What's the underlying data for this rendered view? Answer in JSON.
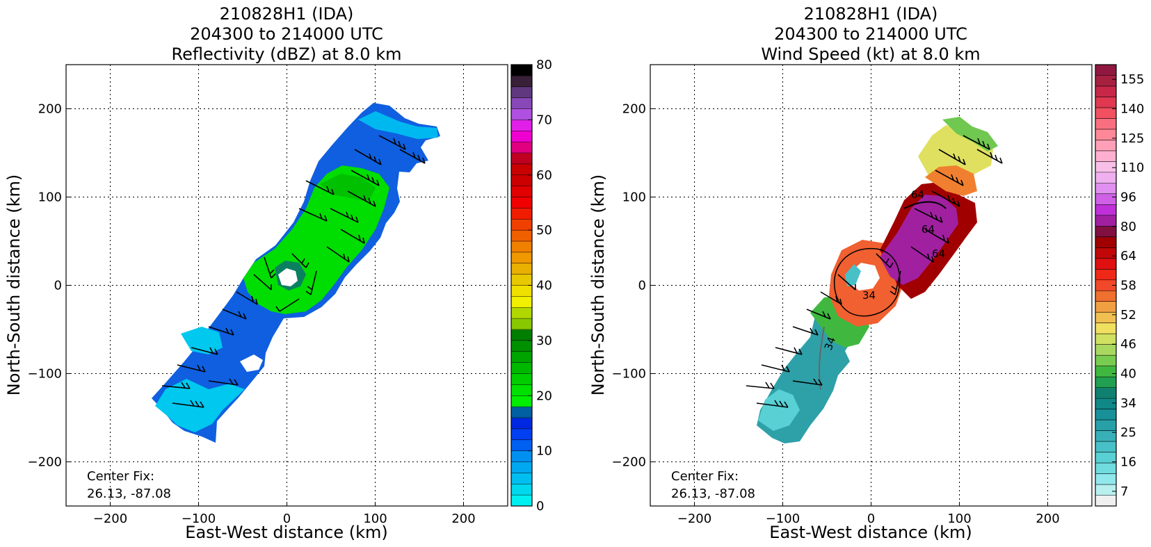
{
  "chart_data": [
    {
      "type": "heatmap",
      "title": [
        "210828H1 (IDA)",
        "204300 to 214000 UTC",
        "Reflectivity (dBZ) at 8.0 km"
      ],
      "xlabel": "East-West distance (km)",
      "ylabel": "North-South distance (km)",
      "xlim": [
        -250,
        250
      ],
      "ylim": [
        -250,
        250
      ],
      "xticks": [
        "−200",
        "−100",
        "0",
        "100",
        "200"
      ],
      "yticks": [
        "200",
        "100",
        "0",
        "−100",
        "−200"
      ],
      "grid": true,
      "annotation": [
        "Center Fix:",
        "26.13, -87.08"
      ],
      "colorbar": {
        "ticks": [
          "0",
          "10",
          "20",
          "30",
          "40",
          "50",
          "60",
          "70",
          "80"
        ],
        "range": [
          0,
          80
        ],
        "colors": [
          "#00f0f0",
          "#00d8ee",
          "#00bff0",
          "#00a8f0",
          "#0090f0",
          "#0060f0",
          "#0040f0",
          "#0028e0",
          "#0060a0",
          "#00ee00",
          "#00e000",
          "#00cc00",
          "#00b800",
          "#00a400",
          "#009000",
          "#007e00",
          "#88c800",
          "#b0d800",
          "#f0f000",
          "#f0e000",
          "#e8c800",
          "#e8b000",
          "#f09800",
          "#f08000",
          "#f06000",
          "#f04000",
          "#f01c00",
          "#f00000",
          "#e00000",
          "#cc0000",
          "#c80000",
          "#c00020",
          "#e00080",
          "#f000d0",
          "#e020e8",
          "#b050e0",
          "#8848b8",
          "#603880",
          "#382038",
          "#000000"
        ]
      },
      "wind_speed_kt": null
    },
    {
      "type": "heatmap",
      "title": [
        "210828H1 (IDA)",
        "204300 to 214000 UTC",
        "Wind Speed (kt) at 8.0 km"
      ],
      "xlabel": "East-West distance (km)",
      "ylabel": "North-South distance (km)",
      "xlim": [
        -250,
        250
      ],
      "ylim": [
        -250,
        250
      ],
      "xticks": [
        "−200",
        "−100",
        "0",
        "100",
        "200"
      ],
      "yticks": [
        "200",
        "100",
        "0",
        "−100",
        "−200"
      ],
      "grid": true,
      "annotation": [
        "Center Fix:",
        "26.13, -87.08"
      ],
      "contour_labels": [
        "34",
        "34",
        "64",
        "64",
        "64"
      ],
      "colorbar": {
        "ticks": [
          "7",
          "16",
          "25",
          "34",
          "40",
          "46",
          "52",
          "58",
          "64",
          "80",
          "96",
          "110",
          "125",
          "140",
          "155"
        ],
        "colors": [
          "#f0f0f0",
          "#b8f0f0",
          "#90e8ec",
          "#70dce0",
          "#58d0d4",
          "#48c0c8",
          "#38b0b8",
          "#28a0a8",
          "#189098",
          "#108888",
          "#108070",
          "#20a050",
          "#40b840",
          "#78cc50",
          "#a8d860",
          "#d0e060",
          "#f0e060",
          "#f0c050",
          "#f0a040",
          "#f07030",
          "#f04828",
          "#f02818",
          "#e01010",
          "#c00808",
          "#a00000",
          "#801040",
          "#a020a0",
          "#c030d8",
          "#d060e8",
          "#e090f0",
          "#f0b0f0",
          "#f8c0e8",
          "#ffb0d0",
          "#ffa0b8",
          "#ff8898",
          "#f87080",
          "#f05060",
          "#e03850",
          "#c82848",
          "#a82040",
          "#901840"
        ]
      }
    }
  ]
}
